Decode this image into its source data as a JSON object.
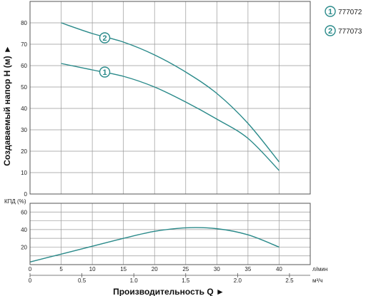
{
  "chart_data": [
    {
      "type": "line",
      "panel": "head",
      "ylabel": "Создаваемый напор H (м) ►",
      "xlim": [
        0,
        45
      ],
      "ylim": [
        0,
        90
      ],
      "x_ticks": [
        0,
        5,
        10,
        15,
        20,
        25,
        30,
        35,
        40
      ],
      "y_ticks": [
        0,
        10,
        20,
        30,
        40,
        50,
        60,
        70,
        80
      ],
      "grid": true,
      "series": [
        {
          "name": "777072",
          "marker_label": "1",
          "marker_at": [
            12,
            57
          ],
          "x": [
            5,
            10,
            15,
            20,
            25,
            30,
            35,
            40
          ],
          "y": [
            61,
            58,
            55,
            50,
            43,
            35,
            26,
            11
          ]
        },
        {
          "name": "777073",
          "marker_label": "2",
          "marker_at": [
            12,
            73
          ],
          "x": [
            5,
            10,
            15,
            20,
            25,
            30,
            35,
            40
          ],
          "y": [
            80,
            75,
            71,
            65,
            57,
            47,
            33,
            15
          ]
        }
      ]
    },
    {
      "type": "line",
      "panel": "efficiency",
      "ylabel": "КПД (%)",
      "xlim": [
        0,
        45
      ],
      "ylim": [
        0,
        70
      ],
      "x_ticks": [
        0,
        5,
        10,
        15,
        20,
        25,
        30,
        35,
        40
      ],
      "y_ticks": [
        20,
        40,
        60
      ],
      "grid": true,
      "series": [
        {
          "x": [
            0,
            5,
            10,
            15,
            20,
            25,
            30,
            35,
            40
          ],
          "y": [
            3,
            12,
            21,
            30,
            38,
            42,
            41,
            34,
            20
          ]
        }
      ]
    }
  ],
  "axes": {
    "x_primary_unit": "л/мин",
    "x_secondary_unit": "м³/ч",
    "x_secondary_ticks": [
      "0",
      "0.5",
      "1.0",
      "1.5",
      "2.0",
      "2.5"
    ],
    "x_secondary_values": [
      0,
      0.5,
      1.0,
      1.5,
      2.0,
      2.5
    ],
    "xlabel": "Производительность Q ►"
  },
  "colors": {
    "curve": "#2a8a8a",
    "marker_stroke": "#2a8a8a",
    "marker_fill": "#ffffff",
    "marker_text": "#2a8a8a",
    "grid": "#999999",
    "frame": "#555555"
  }
}
